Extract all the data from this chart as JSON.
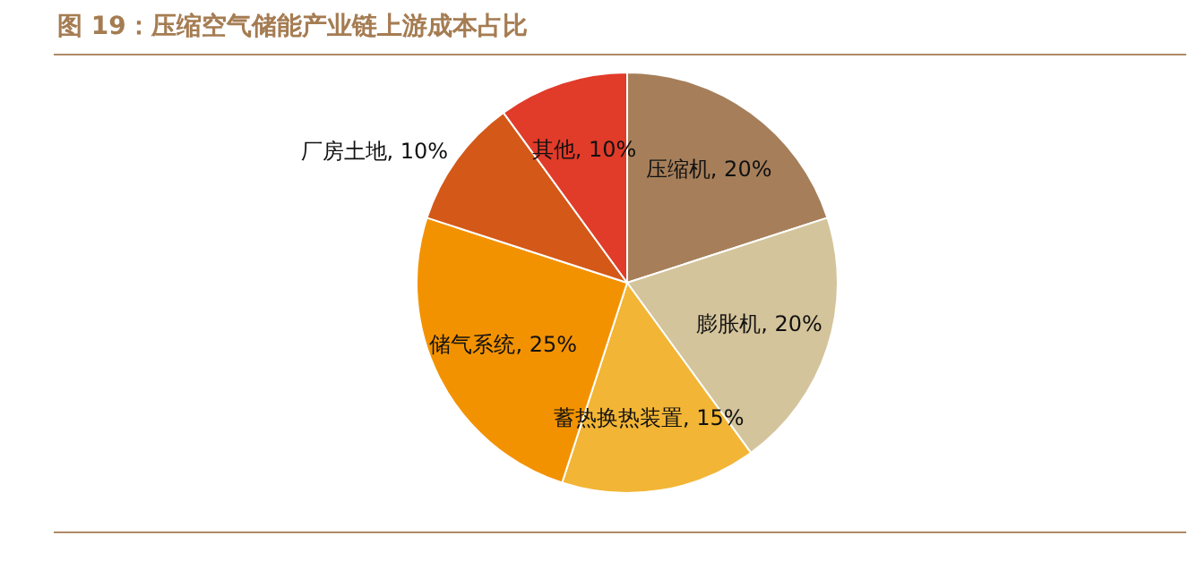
{
  "chart_data": {
    "type": "pie",
    "title": "图 19：压缩空气储能产业链上游成本占比",
    "categories": [
      "压缩机",
      "膨胀机",
      "蓄热换热装置",
      "储气系统",
      "厂房土地",
      "其他"
    ],
    "values": [
      20,
      20,
      15,
      25,
      10,
      10
    ],
    "value_labels": [
      "20%",
      "20%",
      "15%",
      "25%",
      "10%",
      "10%"
    ],
    "colors": [
      "#a67f5a",
      "#d4c49b",
      "#f2b535",
      "#f39200",
      "#d45817",
      "#e13b2a"
    ],
    "legend": false
  }
}
